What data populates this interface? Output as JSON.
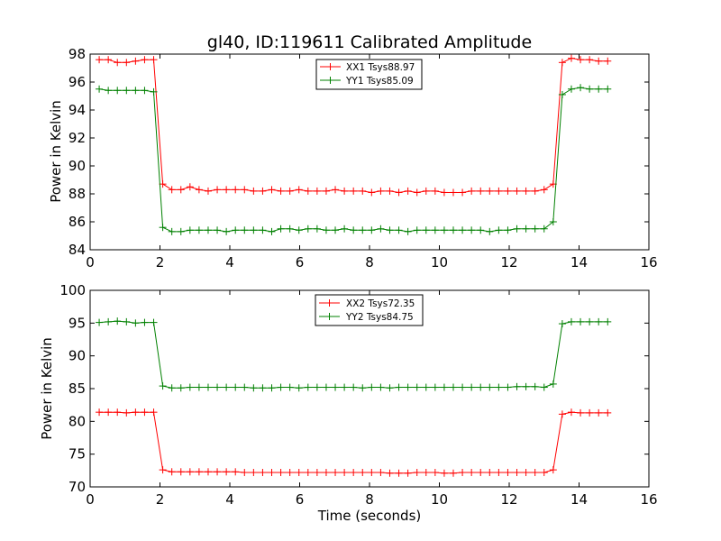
{
  "chart_data": [
    {
      "type": "line",
      "title": "gl40, ID:119611 Calibrated Amplitude",
      "xlabel": "",
      "ylabel": "Power in Kelvin",
      "xlim": [
        0,
        16
      ],
      "ylim": [
        84,
        98
      ],
      "xticks": [
        0,
        2,
        4,
        6,
        8,
        10,
        12,
        14,
        16
      ],
      "yticks": [
        84,
        86,
        88,
        90,
        92,
        94,
        96,
        98
      ],
      "legend_position": "top-center",
      "marker": "+",
      "series": [
        {
          "name": "XX1 Tsys88.97",
          "color": "#ff0000",
          "x": [
            0.26,
            0.52,
            0.78,
            1.04,
            1.3,
            1.56,
            1.82,
            2.08,
            2.34,
            2.6,
            2.86,
            3.12,
            3.38,
            3.64,
            3.9,
            4.16,
            4.42,
            4.68,
            4.94,
            5.2,
            5.46,
            5.72,
            5.98,
            6.24,
            6.5,
            6.76,
            7.02,
            7.28,
            7.54,
            7.8,
            8.06,
            8.32,
            8.58,
            8.84,
            9.1,
            9.36,
            9.62,
            9.88,
            10.14,
            10.4,
            10.66,
            10.92,
            11.18,
            11.44,
            11.7,
            11.96,
            12.22,
            12.48,
            12.74,
            13.0,
            13.26,
            13.52,
            13.78,
            14.04,
            14.3,
            14.56,
            14.82
          ],
          "y": [
            97.6,
            97.6,
            97.4,
            97.4,
            97.5,
            97.6,
            97.6,
            88.7,
            88.3,
            88.3,
            88.5,
            88.3,
            88.2,
            88.3,
            88.3,
            88.3,
            88.3,
            88.2,
            88.2,
            88.3,
            88.2,
            88.2,
            88.3,
            88.2,
            88.2,
            88.2,
            88.3,
            88.2,
            88.2,
            88.2,
            88.1,
            88.2,
            88.2,
            88.1,
            88.2,
            88.1,
            88.2,
            88.2,
            88.1,
            88.1,
            88.1,
            88.2,
            88.2,
            88.2,
            88.2,
            88.2,
            88.2,
            88.2,
            88.2,
            88.3,
            88.7,
            97.4,
            97.7,
            97.6,
            97.6,
            97.5,
            97.5
          ]
        },
        {
          "name": "YY1 Tsys85.09",
          "color": "#008000",
          "x": [
            0.26,
            0.52,
            0.78,
            1.04,
            1.3,
            1.56,
            1.82,
            2.08,
            2.34,
            2.6,
            2.86,
            3.12,
            3.38,
            3.64,
            3.9,
            4.16,
            4.42,
            4.68,
            4.94,
            5.2,
            5.46,
            5.72,
            5.98,
            6.24,
            6.5,
            6.76,
            7.02,
            7.28,
            7.54,
            7.8,
            8.06,
            8.32,
            8.58,
            8.84,
            9.1,
            9.36,
            9.62,
            9.88,
            10.14,
            10.4,
            10.66,
            10.92,
            11.18,
            11.44,
            11.7,
            11.96,
            12.22,
            12.48,
            12.74,
            13.0,
            13.26,
            13.52,
            13.78,
            14.04,
            14.3,
            14.56,
            14.82
          ],
          "y": [
            95.5,
            95.4,
            95.4,
            95.4,
            95.4,
            95.4,
            95.3,
            85.6,
            85.3,
            85.3,
            85.4,
            85.4,
            85.4,
            85.4,
            85.3,
            85.4,
            85.4,
            85.4,
            85.4,
            85.3,
            85.5,
            85.5,
            85.4,
            85.5,
            85.5,
            85.4,
            85.4,
            85.5,
            85.4,
            85.4,
            85.4,
            85.5,
            85.4,
            85.4,
            85.3,
            85.4,
            85.4,
            85.4,
            85.4,
            85.4,
            85.4,
            85.4,
            85.4,
            85.3,
            85.4,
            85.4,
            85.5,
            85.5,
            85.5,
            85.5,
            86.0,
            95.1,
            95.5,
            95.6,
            95.5,
            95.5,
            95.5
          ]
        }
      ]
    },
    {
      "type": "line",
      "title": "",
      "xlabel": "Time (seconds)",
      "ylabel": "Power in Kelvin",
      "xlim": [
        0,
        16
      ],
      "ylim": [
        70,
        100
      ],
      "xticks": [
        0,
        2,
        4,
        6,
        8,
        10,
        12,
        14,
        16
      ],
      "yticks": [
        70,
        75,
        80,
        85,
        90,
        95,
        100
      ],
      "legend_position": "top-center",
      "marker": "+",
      "series": [
        {
          "name": "XX2 Tsys72.35",
          "color": "#ff0000",
          "x": [
            0.26,
            0.52,
            0.78,
            1.04,
            1.3,
            1.56,
            1.82,
            2.08,
            2.34,
            2.6,
            2.86,
            3.12,
            3.38,
            3.64,
            3.9,
            4.16,
            4.42,
            4.68,
            4.94,
            5.2,
            5.46,
            5.72,
            5.98,
            6.24,
            6.5,
            6.76,
            7.02,
            7.28,
            7.54,
            7.8,
            8.06,
            8.32,
            8.58,
            8.84,
            9.1,
            9.36,
            9.62,
            9.88,
            10.14,
            10.4,
            10.66,
            10.92,
            11.18,
            11.44,
            11.7,
            11.96,
            12.22,
            12.48,
            12.74,
            13.0,
            13.26,
            13.52,
            13.78,
            14.04,
            14.3,
            14.56,
            14.82
          ],
          "y": [
            81.4,
            81.4,
            81.4,
            81.3,
            81.4,
            81.4,
            81.4,
            72.6,
            72.3,
            72.3,
            72.3,
            72.3,
            72.3,
            72.3,
            72.3,
            72.3,
            72.2,
            72.2,
            72.2,
            72.2,
            72.2,
            72.2,
            72.2,
            72.2,
            72.2,
            72.2,
            72.2,
            72.2,
            72.2,
            72.2,
            72.2,
            72.2,
            72.1,
            72.1,
            72.1,
            72.2,
            72.2,
            72.2,
            72.1,
            72.1,
            72.2,
            72.2,
            72.2,
            72.2,
            72.2,
            72.2,
            72.2,
            72.2,
            72.2,
            72.2,
            72.6,
            81.1,
            81.4,
            81.3,
            81.3,
            81.3,
            81.3
          ]
        },
        {
          "name": "YY2 Tsys84.75",
          "color": "#008000",
          "x": [
            0.26,
            0.52,
            0.78,
            1.04,
            1.3,
            1.56,
            1.82,
            2.08,
            2.34,
            2.6,
            2.86,
            3.12,
            3.38,
            3.64,
            3.9,
            4.16,
            4.42,
            4.68,
            4.94,
            5.2,
            5.46,
            5.72,
            5.98,
            6.24,
            6.5,
            6.76,
            7.02,
            7.28,
            7.54,
            7.8,
            8.06,
            8.32,
            8.58,
            8.84,
            9.1,
            9.36,
            9.62,
            9.88,
            10.14,
            10.4,
            10.66,
            10.92,
            11.18,
            11.44,
            11.7,
            11.96,
            12.22,
            12.48,
            12.74,
            13.0,
            13.26,
            13.52,
            13.78,
            14.04,
            14.3,
            14.56,
            14.82
          ],
          "y": [
            95.1,
            95.2,
            95.3,
            95.2,
            95.0,
            95.1,
            95.1,
            85.4,
            85.1,
            85.1,
            85.2,
            85.2,
            85.2,
            85.2,
            85.2,
            85.2,
            85.2,
            85.1,
            85.1,
            85.1,
            85.2,
            85.2,
            85.1,
            85.2,
            85.2,
            85.2,
            85.2,
            85.2,
            85.2,
            85.1,
            85.2,
            85.2,
            85.1,
            85.2,
            85.2,
            85.2,
            85.2,
            85.2,
            85.2,
            85.2,
            85.2,
            85.2,
            85.2,
            85.2,
            85.2,
            85.2,
            85.3,
            85.3,
            85.3,
            85.2,
            85.7,
            94.9,
            95.2,
            95.2,
            95.2,
            95.2,
            95.2
          ]
        }
      ]
    }
  ]
}
